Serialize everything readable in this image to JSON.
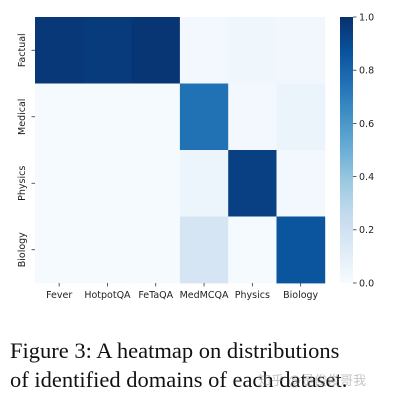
{
  "chart_data": {
    "type": "heatmap",
    "title": "",
    "xlabel": "",
    "ylabel": "",
    "x_categories": [
      "Fever",
      "HotpotQA",
      "FeTaQA",
      "MedMCQA",
      "Physics",
      "Biology"
    ],
    "y_categories": [
      "Factual",
      "Medical",
      "Physics",
      "Biology"
    ],
    "values": [
      [
        0.97,
        0.96,
        0.98,
        0.02,
        0.04,
        0.03
      ],
      [
        0.01,
        0.01,
        0.01,
        0.75,
        0.02,
        0.06
      ],
      [
        0.01,
        0.01,
        0.01,
        0.05,
        0.94,
        0.02
      ],
      [
        0.01,
        0.01,
        0.01,
        0.17,
        0.01,
        0.86
      ]
    ],
    "colorbar": {
      "min": 0.0,
      "max": 1.0,
      "ticks": [
        "0.0",
        "0.2",
        "0.4",
        "0.6",
        "0.8",
        "1.0"
      ],
      "colormap": "Blues"
    }
  },
  "caption": {
    "line1": "Figure 3: A heatmap on distributions",
    "line2": "of identified domains of each dataset."
  },
  "watermark": "知乎 @是俊俊哥我"
}
